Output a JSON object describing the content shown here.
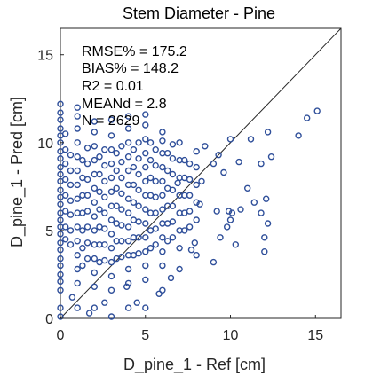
{
  "chart_data": {
    "type": "scatter",
    "title": "Stem Diameter - Pine",
    "xlabel": "D_pine_1 - Ref [cm]",
    "ylabel": "D_pine_1 - Pred [cm]",
    "xlim": [
      0,
      16.5
    ],
    "ylim": [
      0,
      16.5
    ],
    "x_ticks": [
      "0",
      "5",
      "10",
      "15"
    ],
    "y_ticks": [
      "0",
      "5",
      "10",
      "15"
    ],
    "grid": false,
    "one_to_one_line": true,
    "marker": "open-circle",
    "marker_color": "#2f4f9a",
    "stats": [
      "RMSE% = 175.2",
      "BIAS% = 148.2",
      "R2 = 0.01",
      "MEANd = 2.8",
      "N = 2629"
    ],
    "points": {
      "columns": [
        {
          "x": 0,
          "y": [
            0.1,
            0.6,
            1.6,
            2.1,
            2.5,
            3.0,
            3.4,
            3.9,
            4.3,
            4.8,
            5.2,
            5.6,
            6.0,
            6.5,
            6.9,
            7.3,
            7.8,
            8.2,
            8.6,
            9.1,
            9.5,
            10.0,
            10.4,
            10.8,
            11.3,
            11.7,
            12.2
          ]
        },
        {
          "x": 0.3,
          "y": [
            4.5,
            5.2,
            6.1,
            7.0,
            7.9,
            8.8,
            9.6,
            10.5
          ]
        },
        {
          "x": 0.6,
          "y": [
            4.2,
            5.0,
            5.9,
            6.7,
            7.6,
            8.4,
            9.3
          ]
        },
        {
          "x": 1.0,
          "y": [
            0.6,
            2.0,
            2.8,
            3.6,
            4.4,
            5.2,
            6.0,
            6.8,
            7.6,
            8.4,
            9.2,
            10.0,
            10.8,
            11.5,
            12.0
          ]
        },
        {
          "x": 1.3,
          "y": [
            3.0,
            4.0,
            5.0,
            6.0,
            7.0,
            8.0,
            9.0
          ]
        },
        {
          "x": 1.6,
          "y": [
            3.4,
            4.3,
            5.2,
            6.1,
            7.0,
            7.9,
            8.8,
            9.7
          ]
        },
        {
          "x": 2.0,
          "y": [
            0.6,
            1.8,
            2.6,
            3.4,
            4.2,
            5.0,
            5.8,
            6.6,
            7.4,
            8.2,
            9.0,
            9.8,
            10.6,
            11.2
          ]
        },
        {
          "x": 2.3,
          "y": [
            3.2,
            4.2,
            5.2,
            6.2,
            7.2,
            8.2,
            9.2
          ]
        },
        {
          "x": 2.6,
          "y": [
            3.3,
            4.2,
            5.1,
            6.0,
            6.9,
            7.8,
            8.7,
            9.6
          ]
        },
        {
          "x": 3.0,
          "y": [
            0.1,
            1.6,
            2.4,
            3.2,
            4.0,
            4.8,
            5.6,
            6.4,
            7.2,
            8.0,
            8.8,
            9.6,
            10.4,
            11.3
          ]
        },
        {
          "x": 3.3,
          "y": [
            3.4,
            4.4,
            5.4,
            6.4,
            7.4,
            8.4,
            9.4
          ]
        },
        {
          "x": 3.6,
          "y": [
            3.5,
            4.4,
            5.3,
            6.2,
            7.1,
            8.0,
            8.9,
            9.8
          ]
        },
        {
          "x": 4.0,
          "y": [
            0.6,
            2.0,
            2.8,
            3.6,
            4.4,
            5.2,
            6.0,
            6.8,
            7.6,
            8.4,
            9.2,
            10.0,
            10.8,
            11.5
          ]
        },
        {
          "x": 4.3,
          "y": [
            3.6,
            4.6,
            5.6,
            6.6,
            7.6,
            8.6,
            9.6
          ]
        },
        {
          "x": 4.6,
          "y": [
            3.7,
            4.6,
            5.5,
            6.4,
            7.3,
            8.2,
            9.1,
            10.0
          ]
        },
        {
          "x": 5.0,
          "y": [
            0.6,
            2.2,
            3.0,
            3.8,
            4.6,
            5.4,
            6.2,
            7.0,
            7.8,
            8.6,
            9.4,
            10.2,
            11.0,
            11.6
          ]
        },
        {
          "x": 5.3,
          "y": [
            4.0,
            5.0,
            6.0,
            7.0,
            8.0,
            9.0,
            10.0
          ]
        },
        {
          "x": 5.6,
          "y": [
            4.2,
            5.1,
            6.0,
            6.9,
            7.8,
            8.7,
            9.6
          ]
        },
        {
          "x": 6.0,
          "y": [
            1.6,
            3.0,
            3.8,
            4.6,
            5.4,
            6.2,
            7.0,
            7.8,
            8.6,
            9.4,
            10.1,
            10.6
          ]
        },
        {
          "x": 6.3,
          "y": [
            4.4,
            5.4,
            6.4,
            7.4,
            8.4,
            9.4
          ]
        },
        {
          "x": 6.6,
          "y": [
            4.6,
            5.5,
            6.4,
            7.3,
            8.2,
            9.1,
            9.9
          ]
        },
        {
          "x": 7.0,
          "y": [
            2.8,
            4.0,
            5.0,
            6.0,
            7.0,
            8.0,
            9.0,
            10.0
          ]
        },
        {
          "x": 7.3,
          "y": [
            5.0,
            6.0,
            7.0,
            8.0,
            9.0
          ]
        },
        {
          "x": 7.6,
          "y": [
            5.2,
            6.1,
            7.0,
            7.9,
            8.8
          ]
        },
        {
          "x": 8.0,
          "y": [
            3.6,
            5.6,
            6.6,
            7.6,
            8.6,
            9.5
          ]
        }
      ],
      "scatter": [
        [
          8.2,
          6.5
        ],
        [
          8.3,
          7.8
        ],
        [
          9.0,
          3.2
        ],
        [
          9.0,
          8.8
        ],
        [
          9.2,
          6.1
        ],
        [
          9.3,
          9.3
        ],
        [
          9.4,
          4.6
        ],
        [
          9.6,
          8.3
        ],
        [
          9.8,
          5.2
        ],
        [
          10.0,
          10.2
        ],
        [
          10.1,
          6.0
        ],
        [
          10.3,
          4.2
        ],
        [
          10.5,
          8.9
        ],
        [
          11.0,
          7.4
        ],
        [
          11.2,
          10.2
        ],
        [
          11.4,
          6.6
        ],
        [
          11.8,
          8.8
        ],
        [
          12.1,
          6.8
        ],
        [
          12.4,
          9.2
        ],
        [
          12.0,
          4.6
        ],
        [
          12.2,
          5.4
        ],
        [
          11.8,
          6.0
        ],
        [
          12.0,
          3.8
        ],
        [
          12.2,
          10.6
        ],
        [
          14.0,
          10.4
        ],
        [
          14.5,
          11.4
        ],
        [
          15.1,
          11.8
        ],
        [
          9.9,
          6.1
        ],
        [
          10.6,
          6.2
        ],
        [
          10.0,
          5.6
        ],
        [
          7.7,
          3.9
        ],
        [
          7.9,
          4.3
        ],
        [
          8.5,
          9.8
        ],
        [
          6.9,
          7.7
        ],
        [
          3.9,
          1.8
        ],
        [
          4.5,
          0.9
        ],
        [
          5.8,
          1.4
        ],
        [
          6.5,
          2.3
        ],
        [
          2.6,
          0.9
        ],
        [
          1.7,
          0.3
        ],
        [
          0.7,
          1.2
        ]
      ]
    }
  }
}
